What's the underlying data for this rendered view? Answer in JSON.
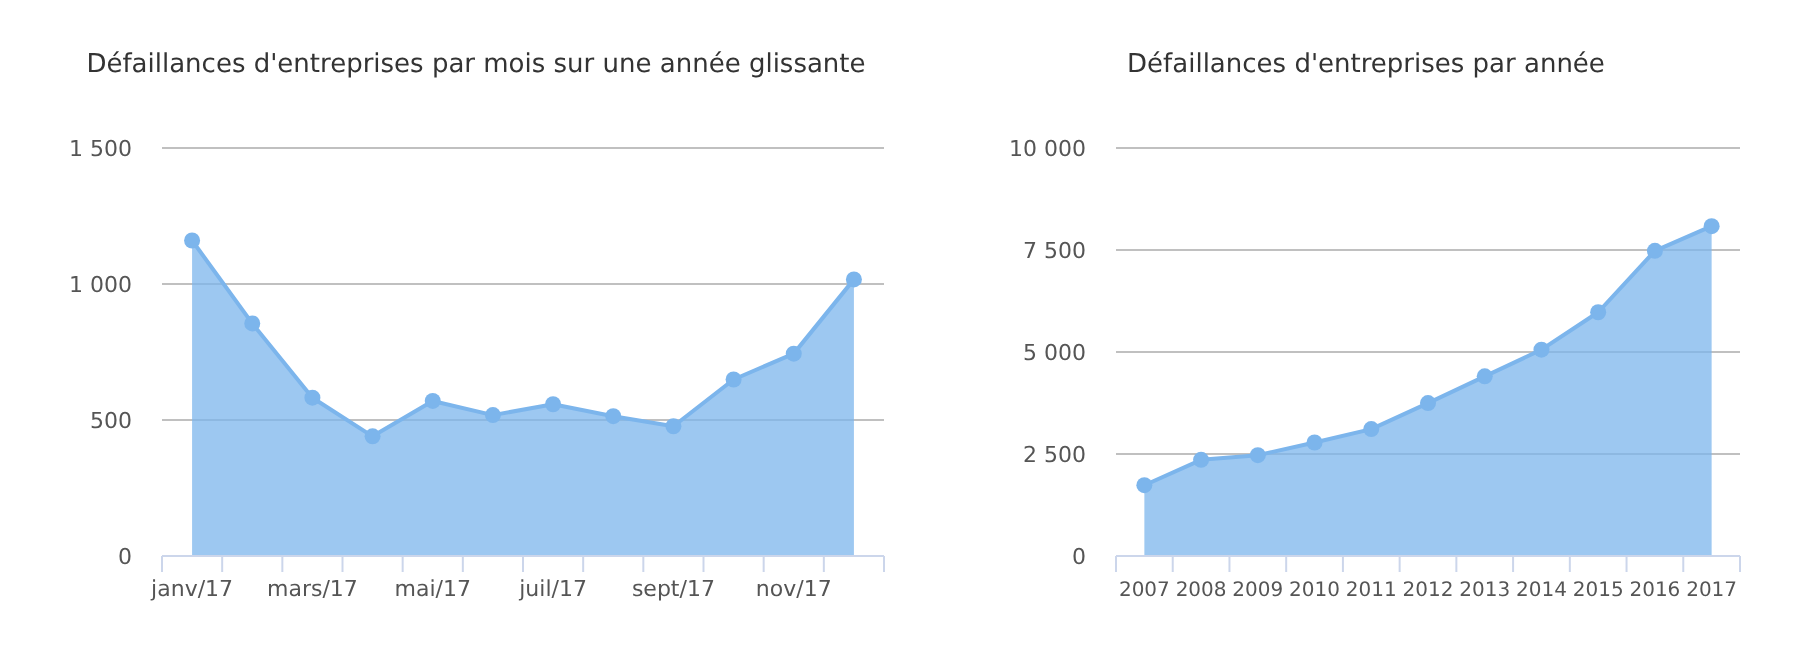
{
  "chart_data": [
    {
      "type": "area",
      "title": "Défaillances d'entreprises par mois sur une année glissante",
      "categories": [
        "janv/17",
        null,
        "mars/17",
        null,
        "mai/17",
        null,
        "juil/17",
        null,
        "sept/17",
        null,
        "nov/17",
        null
      ],
      "series": [
        {
          "color": "#7cb5ec",
          "values": [
            1160,
            855,
            582,
            440,
            570,
            518,
            558,
            514,
            477,
            649,
            744,
            1017
          ]
        }
      ],
      "ylim": [
        0,
        1500
      ],
      "yticks": [
        0,
        {
          "value": 500,
          "label": "500"
        },
        {
          "value": 1000,
          "label": "1 000"
        },
        {
          "value": 1500,
          "label": "1 500"
        }
      ],
      "grid": "y",
      "marker": "circle"
    },
    {
      "type": "area",
      "title": "Défaillances d'entreprises par année",
      "categories": [
        "2007",
        "2008",
        "2009",
        "2010",
        "2011",
        "2012",
        "2013",
        "2014",
        "2015",
        "2016",
        "2017"
      ],
      "series": [
        {
          "color": "#7cb5ec",
          "values": [
            1735,
            2357,
            2471,
            2782,
            3110,
            3748,
            4403,
            5057,
            5974,
            7480,
            8085
          ]
        }
      ],
      "ylim": [
        0,
        10000
      ],
      "yticks": [
        0,
        {
          "value": 2500,
          "label": "2 500"
        },
        {
          "value": 5000,
          "label": "5 000"
        },
        {
          "value": 7500,
          "label": "7 500"
        },
        {
          "value": 10000,
          "label": "10 000"
        }
      ],
      "grid": "y",
      "marker": "circle"
    }
  ]
}
